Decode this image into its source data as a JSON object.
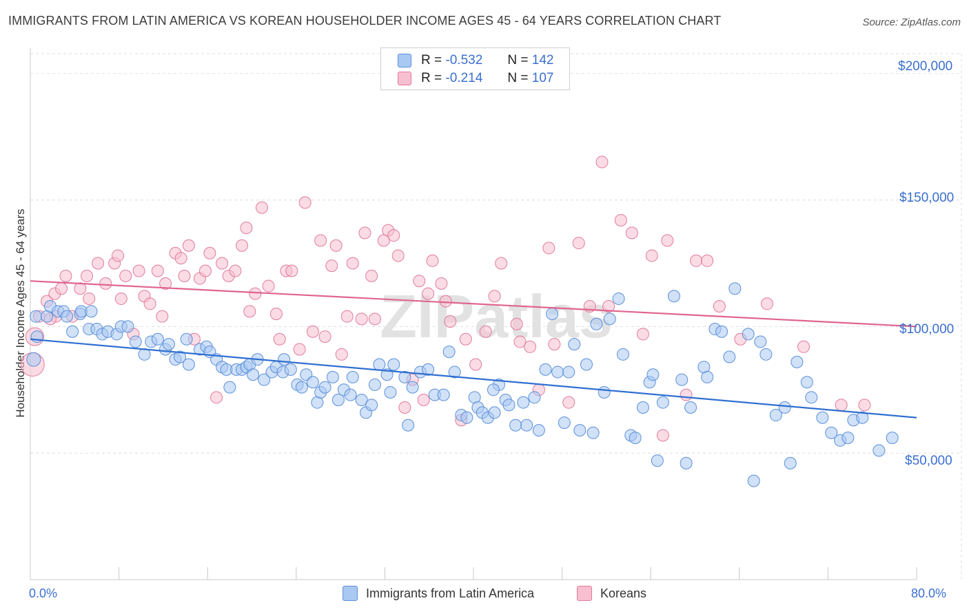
{
  "title": "IMMIGRANTS FROM LATIN AMERICA VS KOREAN HOUSEHOLDER INCOME AGES 45 - 64 YEARS CORRELATION CHART",
  "source": "Source: ZipAtlas.com",
  "legend_top": {
    "rows": [
      {
        "r_label": "R =",
        "r_value": "-0.532",
        "n_label": "N =",
        "n_value": "142",
        "color": "#a9c8f2",
        "border": "#5b8fd9"
      },
      {
        "r_label": "R =",
        "r_value": "-0.214",
        "n_label": "N =",
        "n_value": "107",
        "color": "#f7bfd0",
        "border": "#e07a9c"
      }
    ]
  },
  "legend_bottom": [
    "Immigrants from Latin America",
    "Koreans"
  ],
  "colors": {
    "blue_fill": "#a9c8f2",
    "blue_stroke": "#5b8fd9",
    "blue_line": "#2f6fd1",
    "pink_fill": "#f7bfd0",
    "pink_stroke": "#e07a9c",
    "pink_line": "#e0648f",
    "axis_label": "#3a6fd0",
    "grid": "#dddddd"
  },
  "chart_data": {
    "type": "scatter",
    "title": "IMMIGRANTS FROM LATIN AMERICA VS KOREAN HOUSEHOLDER INCOME AGES 45 - 64 YEARS CORRELATION CHART",
    "xlabel": "",
    "ylabel": "Householder Income Ages 45 - 64 years",
    "xlim": [
      0,
      80
    ],
    "ylim": [
      0,
      210000
    ],
    "x_tick_labels": [
      "0.0%",
      "80.0%"
    ],
    "y_tick_labels": [
      "$50,000",
      "$100,000",
      "$150,000",
      "$200,000"
    ],
    "y_ticks": [
      50000,
      100000,
      150000,
      200000
    ],
    "grid": true,
    "legend_position": "top-center",
    "watermark": "ZIPatlas",
    "series": [
      {
        "name": "Immigrants from Latin America",
        "r": -0.532,
        "n": 142,
        "trend": [
          [
            0,
            95000
          ],
          [
            80,
            64000
          ]
        ],
        "points": [
          [
            0.3,
            87000
          ],
          [
            0.5,
            104000
          ],
          [
            0.6,
            96000
          ],
          [
            1.5,
            104000
          ],
          [
            1.8,
            108000
          ],
          [
            2.5,
            106000
          ],
          [
            3,
            106000
          ],
          [
            3.3,
            104000
          ],
          [
            4.5,
            105000
          ],
          [
            4.6,
            106000
          ],
          [
            5.5,
            106000
          ],
          [
            5.3,
            99000
          ],
          [
            6,
            99000
          ],
          [
            6.5,
            97000
          ],
          [
            7,
            98000
          ],
          [
            7.8,
            97000
          ],
          [
            8.2,
            100000
          ],
          [
            8.8,
            100000
          ],
          [
            9.5,
            94000
          ],
          [
            10.3,
            89000
          ],
          [
            10.9,
            94000
          ],
          [
            11.5,
            95000
          ],
          [
            12.2,
            91000
          ],
          [
            12.5,
            93000
          ],
          [
            13.1,
            87000
          ],
          [
            13.5,
            88000
          ],
          [
            14.1,
            95000
          ],
          [
            14.3,
            85000
          ],
          [
            15.3,
            91000
          ],
          [
            15.9,
            92000
          ],
          [
            16.2,
            90000
          ],
          [
            16.8,
            87000
          ],
          [
            17.3,
            84000
          ],
          [
            17.7,
            83000
          ],
          [
            18,
            76000
          ],
          [
            18.6,
            83000
          ],
          [
            19.1,
            83000
          ],
          [
            19.5,
            84000
          ],
          [
            19.8,
            85000
          ],
          [
            20.1,
            81000
          ],
          [
            20.5,
            87000
          ],
          [
            21.1,
            79000
          ],
          [
            21.8,
            82000
          ],
          [
            22.2,
            84000
          ],
          [
            22.8,
            82000
          ],
          [
            22.9,
            87000
          ],
          [
            23.5,
            83000
          ],
          [
            24.1,
            77000
          ],
          [
            24.5,
            76000
          ],
          [
            24.9,
            81000
          ],
          [
            25.5,
            78000
          ],
          [
            25.9,
            70000
          ],
          [
            26.2,
            74000
          ],
          [
            26.6,
            76000
          ],
          [
            27.3,
            80000
          ],
          [
            27.8,
            71000
          ],
          [
            28.3,
            75000
          ],
          [
            28.9,
            73000
          ],
          [
            29.1,
            80000
          ],
          [
            29.9,
            71000
          ],
          [
            30.3,
            66000
          ],
          [
            30.8,
            69000
          ],
          [
            31.1,
            77000
          ],
          [
            31.5,
            85000
          ],
          [
            32.2,
            81000
          ],
          [
            32.5,
            74000
          ],
          [
            32.8,
            85000
          ],
          [
            33.8,
            80000
          ],
          [
            34.1,
            61000
          ],
          [
            34.5,
            76000
          ],
          [
            35.2,
            82000
          ],
          [
            35.9,
            83000
          ],
          [
            36.5,
            73000
          ],
          [
            37.3,
            73000
          ],
          [
            37.8,
            90000
          ],
          [
            38.3,
            82000
          ],
          [
            38.9,
            65000
          ],
          [
            39.4,
            64000
          ],
          [
            40.1,
            72000
          ],
          [
            40.4,
            68000
          ],
          [
            40.8,
            66000
          ],
          [
            41.3,
            64000
          ],
          [
            41.9,
            66000
          ],
          [
            42.3,
            77000
          ],
          [
            42.9,
            71000
          ],
          [
            43.2,
            69000
          ],
          [
            43.8,
            61000
          ],
          [
            44.5,
            70000
          ],
          [
            44.8,
            61000
          ],
          [
            45.5,
            72000
          ],
          [
            45.9,
            59000
          ],
          [
            46.5,
            83000
          ],
          [
            47.1,
            105000
          ],
          [
            47.6,
            82000
          ],
          [
            48.2,
            62000
          ],
          [
            48.6,
            82000
          ],
          [
            49.1,
            93000
          ],
          [
            49.6,
            59000
          ],
          [
            50.2,
            85000
          ],
          [
            50.8,
            58000
          ],
          [
            51.1,
            101000
          ],
          [
            51.8,
            74000
          ],
          [
            52.3,
            103000
          ],
          [
            53.1,
            111000
          ],
          [
            53.5,
            89000
          ],
          [
            54.2,
            57000
          ],
          [
            54.6,
            56000
          ],
          [
            55.3,
            68000
          ],
          [
            55.9,
            78000
          ],
          [
            56.2,
            81000
          ],
          [
            56.6,
            47000
          ],
          [
            57.1,
            70000
          ],
          [
            58.1,
            112000
          ],
          [
            58.8,
            79000
          ],
          [
            59.2,
            46000
          ],
          [
            59.6,
            68000
          ],
          [
            60.8,
            84000
          ],
          [
            61.1,
            80000
          ],
          [
            61.8,
            99000
          ],
          [
            62.4,
            98000
          ],
          [
            63.1,
            88000
          ],
          [
            63.6,
            115000
          ],
          [
            64.8,
            97000
          ],
          [
            65.3,
            39000
          ],
          [
            65.9,
            94000
          ],
          [
            66.4,
            89000
          ],
          [
            67.3,
            65000
          ],
          [
            68.1,
            68000
          ],
          [
            68.6,
            46000
          ],
          [
            69.2,
            86000
          ],
          [
            70.1,
            78000
          ],
          [
            70.5,
            72000
          ],
          [
            71.5,
            64000
          ],
          [
            72.3,
            58000
          ],
          [
            73.1,
            55000
          ],
          [
            73.8,
            56000
          ],
          [
            74.3,
            63000
          ],
          [
            75.1,
            64000
          ],
          [
            76.6,
            51000
          ],
          [
            77.8,
            56000
          ],
          [
            3.8,
            98000
          ],
          [
            41.8,
            75000
          ]
        ]
      },
      {
        "name": "Koreans",
        "r": -0.214,
        "n": 107,
        "trend": [
          [
            0,
            118000
          ],
          [
            80,
            100000
          ]
        ],
        "points": [
          [
            0.2,
            85000
          ],
          [
            0.4,
            96000
          ],
          [
            0.8,
            104000
          ],
          [
            1.5,
            110000
          ],
          [
            2.2,
            113000
          ],
          [
            2.8,
            115000
          ],
          [
            3.2,
            120000
          ],
          [
            3.8,
            104000
          ],
          [
            4.5,
            115000
          ],
          [
            5.1,
            120000
          ],
          [
            5.3,
            111000
          ],
          [
            6.1,
            125000
          ],
          [
            6.8,
            117000
          ],
          [
            7.6,
            125000
          ],
          [
            7.9,
            128000
          ],
          [
            8.2,
            111000
          ],
          [
            8.6,
            120000
          ],
          [
            9.3,
            97000
          ],
          [
            9.8,
            122000
          ],
          [
            10.3,
            112000
          ],
          [
            10.8,
            109000
          ],
          [
            11.5,
            122000
          ],
          [
            11.9,
            104000
          ],
          [
            12.2,
            117000
          ],
          [
            13.1,
            129000
          ],
          [
            13.6,
            127000
          ],
          [
            13.9,
            120000
          ],
          [
            14.3,
            132000
          ],
          [
            14.8,
            95000
          ],
          [
            15.3,
            119000
          ],
          [
            15.8,
            122000
          ],
          [
            16.2,
            129000
          ],
          [
            16.8,
            72000
          ],
          [
            17.3,
            125000
          ],
          [
            17.9,
            120000
          ],
          [
            18.5,
            122000
          ],
          [
            19.1,
            132000
          ],
          [
            19.5,
            139000
          ],
          [
            19.8,
            106000
          ],
          [
            20.3,
            113000
          ],
          [
            20.9,
            147000
          ],
          [
            21.5,
            116000
          ],
          [
            22.2,
            105000
          ],
          [
            22.5,
            95000
          ],
          [
            23.1,
            122000
          ],
          [
            23.6,
            122000
          ],
          [
            24.3,
            91000
          ],
          [
            24.8,
            149000
          ],
          [
            25.5,
            98000
          ],
          [
            26.2,
            134000
          ],
          [
            26.6,
            96000
          ],
          [
            27.2,
            124000
          ],
          [
            27.6,
            132000
          ],
          [
            28.1,
            89000
          ],
          [
            28.6,
            104000
          ],
          [
            29.1,
            125000
          ],
          [
            29.9,
            103000
          ],
          [
            30.2,
            137000
          ],
          [
            30.8,
            120000
          ],
          [
            31.1,
            103000
          ],
          [
            31.9,
            134000
          ],
          [
            32.3,
            138000
          ],
          [
            32.8,
            136000
          ],
          [
            33.2,
            128000
          ],
          [
            33.8,
            68000
          ],
          [
            34.5,
            79000
          ],
          [
            35.1,
            118000
          ],
          [
            35.5,
            71000
          ],
          [
            35.9,
            113000
          ],
          [
            36.3,
            126000
          ],
          [
            37.1,
            117000
          ],
          [
            37.5,
            110000
          ],
          [
            37.9,
            102000
          ],
          [
            38.9,
            63000
          ],
          [
            39.3,
            95000
          ],
          [
            40.2,
            85000
          ],
          [
            41.1,
            98000
          ],
          [
            41.9,
            112000
          ],
          [
            42.5,
            125000
          ],
          [
            43.9,
            101000
          ],
          [
            44.2,
            94000
          ],
          [
            45.1,
            92000
          ],
          [
            45.9,
            75000
          ],
          [
            46.8,
            131000
          ],
          [
            47.3,
            93000
          ],
          [
            48.6,
            70000
          ],
          [
            49.5,
            133000
          ],
          [
            50.5,
            108000
          ],
          [
            51.6,
            165000
          ],
          [
            52.2,
            108000
          ],
          [
            53.3,
            142000
          ],
          [
            54.3,
            137000
          ],
          [
            55.3,
            97000
          ],
          [
            56.1,
            128000
          ],
          [
            57.1,
            57000
          ],
          [
            57.5,
            134000
          ],
          [
            59.2,
            73000
          ],
          [
            60.1,
            126000
          ],
          [
            61.1,
            126000
          ],
          [
            62.2,
            108000
          ],
          [
            64.1,
            95000
          ],
          [
            66.5,
            109000
          ],
          [
            69.8,
            92000
          ],
          [
            73.2,
            69000
          ],
          [
            75.3,
            69000
          ],
          [
            2.3,
            104000
          ],
          [
            1.8,
            103000
          ]
        ]
      }
    ]
  }
}
